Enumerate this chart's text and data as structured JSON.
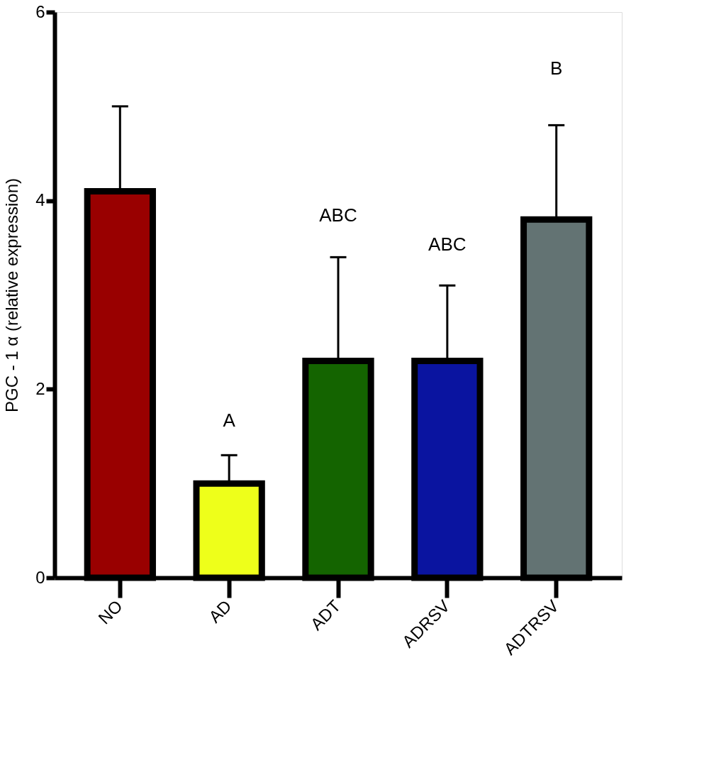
{
  "chart_data": {
    "type": "bar",
    "ylabel": "PGC - 1 α (relative expression)",
    "categories": [
      "NO",
      "AD",
      "ADT",
      "ADRSV",
      "ADTRSV"
    ],
    "values": [
      4.1,
      1.0,
      2.3,
      2.3,
      3.8
    ],
    "colors": [
      "#990000",
      "#eeff1a",
      "#146400",
      "#0a14a0",
      "#637373"
    ],
    "errors": [
      [
        4.1,
        5.0
      ],
      [
        1.0,
        1.3
      ],
      [
        2.3,
        3.4
      ],
      [
        2.3,
        3.1
      ],
      [
        3.8,
        4.8
      ]
    ],
    "ylim": [
      0,
      6
    ],
    "yticks": [
      0,
      2,
      4,
      6
    ],
    "grid": false,
    "annotations": [
      "A",
      "ABC",
      "ABC",
      "B"
    ]
  }
}
